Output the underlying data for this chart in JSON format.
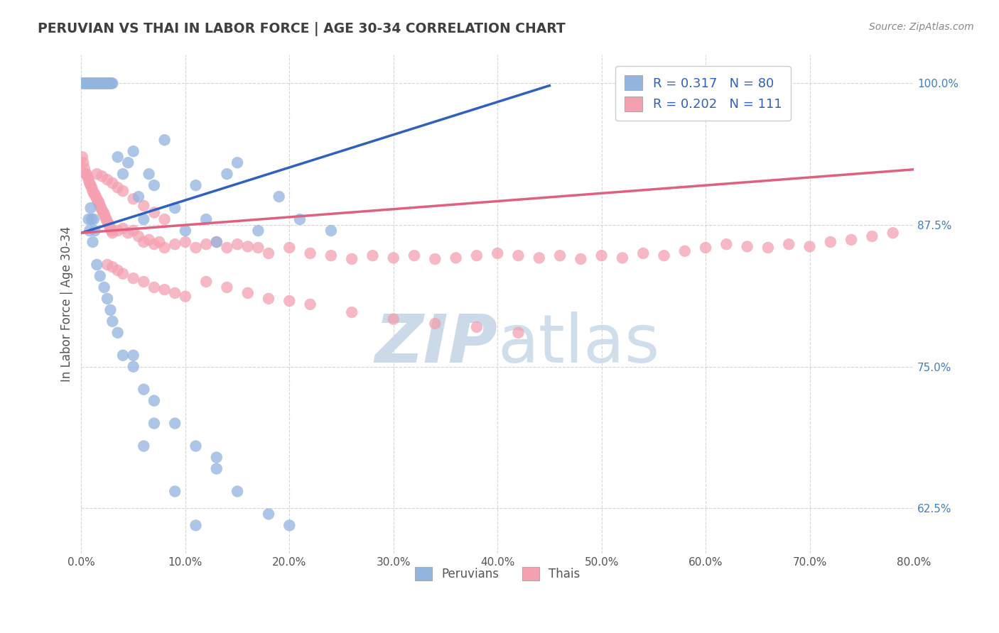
{
  "title": "PERUVIAN VS THAI IN LABOR FORCE | AGE 30-34 CORRELATION CHART",
  "source_text": "Source: ZipAtlas.com",
  "ylabel": "In Labor Force | Age 30-34",
  "xlim": [
    0.0,
    0.8
  ],
  "ylim": [
    0.585,
    1.025
  ],
  "yticks": [
    0.625,
    0.75,
    0.875,
    1.0
  ],
  "ytick_labels": [
    "62.5%",
    "75.0%",
    "87.5%",
    "100.0%"
  ],
  "xticks": [
    0.0,
    0.1,
    0.2,
    0.3,
    0.4,
    0.5,
    0.6,
    0.7,
    0.8
  ],
  "xtick_labels": [
    "0.0%",
    "10.0%",
    "20.0%",
    "30.0%",
    "40.0%",
    "50.0%",
    "60.0%",
    "70.0%",
    "80.0%"
  ],
  "peruvian_color": "#92b4e0",
  "thai_color": "#f4a0b0",
  "peruvian_line_color": "#3060c0",
  "thai_line_color": "#e06080",
  "R_peruvian": 0.317,
  "N_peruvian": 80,
  "R_thai": 0.202,
  "N_thai": 111,
  "background_color": "#ffffff",
  "watermark_color": "#ccd9e8",
  "grid_color": "#cccccc",
  "title_color": "#404040",
  "peruvian_scatter_x": [
    0.001,
    0.002,
    0.003,
    0.004,
    0.005,
    0.006,
    0.007,
    0.008,
    0.009,
    0.01,
    0.011,
    0.012,
    0.013,
    0.014,
    0.015,
    0.016,
    0.017,
    0.018,
    0.019,
    0.02,
    0.021,
    0.022,
    0.023,
    0.024,
    0.025,
    0.026,
    0.027,
    0.028,
    0.029,
    0.03,
    0.035,
    0.04,
    0.045,
    0.05,
    0.055,
    0.06,
    0.065,
    0.07,
    0.08,
    0.09,
    0.1,
    0.11,
    0.12,
    0.13,
    0.14,
    0.15,
    0.17,
    0.19,
    0.21,
    0.24,
    0.007,
    0.008,
    0.009,
    0.01,
    0.011,
    0.012,
    0.013,
    0.015,
    0.018,
    0.022,
    0.025,
    0.028,
    0.03,
    0.035,
    0.04,
    0.05,
    0.06,
    0.07,
    0.09,
    0.11,
    0.13,
    0.15,
    0.18,
    0.2,
    0.13,
    0.05,
    0.07,
    0.09,
    0.11,
    0.06
  ],
  "peruvian_scatter_y": [
    1.0,
    1.0,
    1.0,
    1.0,
    1.0,
    1.0,
    1.0,
    1.0,
    1.0,
    1.0,
    1.0,
    1.0,
    1.0,
    1.0,
    1.0,
    1.0,
    1.0,
    1.0,
    1.0,
    1.0,
    1.0,
    1.0,
    1.0,
    1.0,
    1.0,
    1.0,
    1.0,
    1.0,
    1.0,
    1.0,
    0.935,
    0.92,
    0.93,
    0.94,
    0.9,
    0.88,
    0.92,
    0.91,
    0.95,
    0.89,
    0.87,
    0.91,
    0.88,
    0.86,
    0.92,
    0.93,
    0.87,
    0.9,
    0.88,
    0.87,
    0.88,
    0.87,
    0.89,
    0.88,
    0.86,
    0.88,
    0.87,
    0.84,
    0.83,
    0.82,
    0.81,
    0.8,
    0.79,
    0.78,
    0.76,
    0.75,
    0.73,
    0.72,
    0.7,
    0.68,
    0.66,
    0.64,
    0.62,
    0.61,
    0.67,
    0.76,
    0.7,
    0.64,
    0.61,
    0.68
  ],
  "thai_scatter_x": [
    0.001,
    0.002,
    0.003,
    0.004,
    0.005,
    0.006,
    0.007,
    0.008,
    0.009,
    0.01,
    0.011,
    0.012,
    0.013,
    0.014,
    0.015,
    0.016,
    0.017,
    0.018,
    0.019,
    0.02,
    0.021,
    0.022,
    0.023,
    0.024,
    0.025,
    0.026,
    0.027,
    0.028,
    0.029,
    0.03,
    0.035,
    0.04,
    0.045,
    0.05,
    0.055,
    0.06,
    0.065,
    0.07,
    0.075,
    0.08,
    0.09,
    0.1,
    0.11,
    0.12,
    0.13,
    0.14,
    0.15,
    0.16,
    0.17,
    0.18,
    0.2,
    0.22,
    0.24,
    0.26,
    0.28,
    0.3,
    0.32,
    0.34,
    0.36,
    0.38,
    0.4,
    0.42,
    0.44,
    0.46,
    0.48,
    0.5,
    0.52,
    0.54,
    0.56,
    0.58,
    0.6,
    0.62,
    0.64,
    0.66,
    0.68,
    0.7,
    0.72,
    0.74,
    0.76,
    0.78,
    0.025,
    0.03,
    0.035,
    0.04,
    0.05,
    0.06,
    0.07,
    0.08,
    0.09,
    0.1,
    0.015,
    0.02,
    0.025,
    0.03,
    0.035,
    0.04,
    0.05,
    0.06,
    0.07,
    0.08,
    0.12,
    0.14,
    0.16,
    0.18,
    0.2,
    0.22,
    0.26,
    0.3,
    0.34,
    0.38,
    0.42
  ],
  "thai_scatter_y": [
    0.935,
    0.93,
    0.925,
    0.92,
    0.92,
    0.918,
    0.915,
    0.912,
    0.91,
    0.908,
    0.905,
    0.903,
    0.902,
    0.9,
    0.898,
    0.896,
    0.895,
    0.892,
    0.89,
    0.888,
    0.886,
    0.885,
    0.882,
    0.88,
    0.878,
    0.876,
    0.874,
    0.872,
    0.87,
    0.868,
    0.87,
    0.872,
    0.868,
    0.87,
    0.865,
    0.86,
    0.862,
    0.858,
    0.86,
    0.855,
    0.858,
    0.86,
    0.855,
    0.858,
    0.86,
    0.855,
    0.858,
    0.856,
    0.855,
    0.85,
    0.855,
    0.85,
    0.848,
    0.845,
    0.848,
    0.846,
    0.848,
    0.845,
    0.846,
    0.848,
    0.85,
    0.848,
    0.846,
    0.848,
    0.845,
    0.848,
    0.846,
    0.85,
    0.848,
    0.852,
    0.855,
    0.858,
    0.856,
    0.855,
    0.858,
    0.856,
    0.86,
    0.862,
    0.865,
    0.868,
    0.84,
    0.838,
    0.835,
    0.832,
    0.828,
    0.825,
    0.82,
    0.818,
    0.815,
    0.812,
    0.92,
    0.918,
    0.915,
    0.912,
    0.908,
    0.905,
    0.898,
    0.892,
    0.886,
    0.88,
    0.825,
    0.82,
    0.815,
    0.81,
    0.808,
    0.805,
    0.798,
    0.792,
    0.788,
    0.785,
    0.78
  ],
  "trend_peruvian_x0": 0.0,
  "trend_peruvian_y0": 0.868,
  "trend_peruvian_x1": 0.45,
  "trend_peruvian_y1": 0.998,
  "trend_thai_x0": 0.0,
  "trend_thai_y0": 0.868,
  "trend_thai_x1": 0.8,
  "trend_thai_y1": 0.924
}
